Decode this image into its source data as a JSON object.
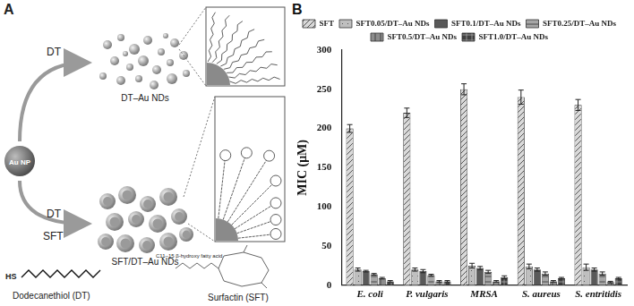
{
  "panels": {
    "A": {
      "label": "A",
      "start": "Au NP",
      "upper_reagent": "DT",
      "upper_product": "DT–Au NDs",
      "lower_reagents": [
        "DT",
        "SFT"
      ],
      "lower_product": "SFT/DT–Au NDs",
      "molecules": [
        {
          "group": "HS",
          "name": "Dodecanethiol (DT)"
        },
        {
          "group": "C11–15 β-hydroxy fatty acid",
          "name": "Surfactin (SFT)"
        }
      ]
    },
    "B": {
      "label": "B"
    }
  },
  "chart_data": {
    "type": "bar",
    "y_label": "MIC (μM)",
    "categories": [
      "E. coli",
      "P. vulgaris",
      "MRSA",
      "S. aureus",
      "S. entritidis"
    ],
    "series": [
      {
        "name": "SFT",
        "color": "#d9d9d9",
        "values": [
          200,
          220,
          250,
          240,
          230
        ],
        "errors": [
          5,
          6,
          7,
          9,
          7
        ]
      },
      {
        "name": "SFT0.05/DT–Au NDs",
        "color": "#bfbfbf",
        "values": [
          20,
          20,
          25,
          24,
          23
        ],
        "errors": [
          2,
          2,
          3,
          3,
          4
        ]
      },
      {
        "name": "SFT0.1/DT–Au NDs",
        "color": "#595959",
        "values": [
          18,
          18,
          22,
          20,
          20
        ],
        "errors": [
          1,
          2,
          2,
          2,
          2
        ]
      },
      {
        "name": "SFT0.25/DT–Au NDs",
        "color": "#a6a6a6",
        "values": [
          14,
          13,
          17,
          15,
          15
        ],
        "errors": [
          1,
          1,
          2,
          2,
          2
        ]
      },
      {
        "name": "SFT0.5/DT–Au NDs",
        "color": "#8c8c8c",
        "values": [
          9,
          5,
          5,
          5,
          4
        ],
        "errors": [
          1,
          1,
          1,
          1,
          1
        ]
      },
      {
        "name": "SFT1.0/DT–Au NDs",
        "color": "#404040",
        "values": [
          5,
          5,
          10,
          9,
          9
        ],
        "errors": [
          1,
          1,
          2,
          1,
          1
        ]
      }
    ],
    "ylim": [
      0,
      300
    ],
    "yticks": [
      0,
      50,
      100,
      150,
      200,
      250,
      300
    ],
    "grid": false,
    "legend": "top"
  }
}
